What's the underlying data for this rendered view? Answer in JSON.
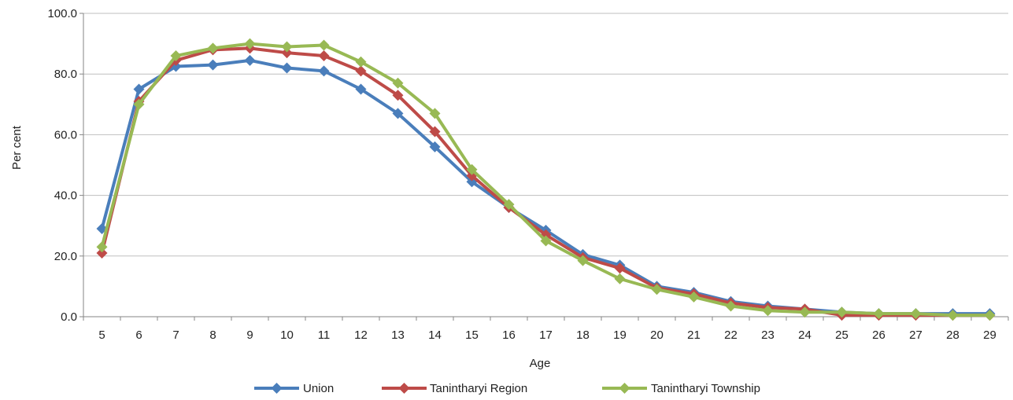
{
  "chart_data": {
    "type": "line",
    "title": "",
    "xlabel": "Age",
    "ylabel": "Per cent",
    "ylim": [
      0,
      100
    ],
    "ytick_labels": [
      "0.0",
      "20.0",
      "40.0",
      "60.0",
      "80.0",
      "100.0"
    ],
    "grid": "horizontal",
    "legend_position": "bottom",
    "categories": [
      "5",
      "6",
      "7",
      "8",
      "9",
      "10",
      "11",
      "12",
      "13",
      "14",
      "15",
      "16",
      "17",
      "18",
      "19",
      "20",
      "21",
      "22",
      "23",
      "24",
      "25",
      "26",
      "27",
      "28",
      "29"
    ],
    "series": [
      {
        "name": "Union",
        "color": "#4a7ebb",
        "values": [
          29.0,
          75.0,
          82.5,
          83.0,
          84.5,
          82.0,
          81.0,
          75.0,
          67.0,
          56.0,
          44.5,
          36.0,
          28.5,
          20.5,
          17.0,
          10.0,
          8.0,
          5.0,
          3.5,
          2.5,
          1.5,
          1.0,
          1.0,
          1.0,
          1.0
        ]
      },
      {
        "name": "Tanintharyi Region",
        "color": "#be4b48",
        "values": [
          21.0,
          71.0,
          84.5,
          88.0,
          88.5,
          87.0,
          86.0,
          81.0,
          73.0,
          61.0,
          46.5,
          36.0,
          27.0,
          19.5,
          16.0,
          9.5,
          7.5,
          4.5,
          3.0,
          2.5,
          0.5,
          0.5,
          0.5,
          0.5,
          0.5
        ]
      },
      {
        "name": "Tanintharyi Township",
        "color": "#98b954",
        "values": [
          23.0,
          70.0,
          86.0,
          88.5,
          90.0,
          89.0,
          89.5,
          84.0,
          77.0,
          67.0,
          48.5,
          37.0,
          25.0,
          18.5,
          12.5,
          9.0,
          6.5,
          3.5,
          2.0,
          1.5,
          1.5,
          1.0,
          1.0,
          0.5,
          0.5
        ]
      }
    ]
  }
}
